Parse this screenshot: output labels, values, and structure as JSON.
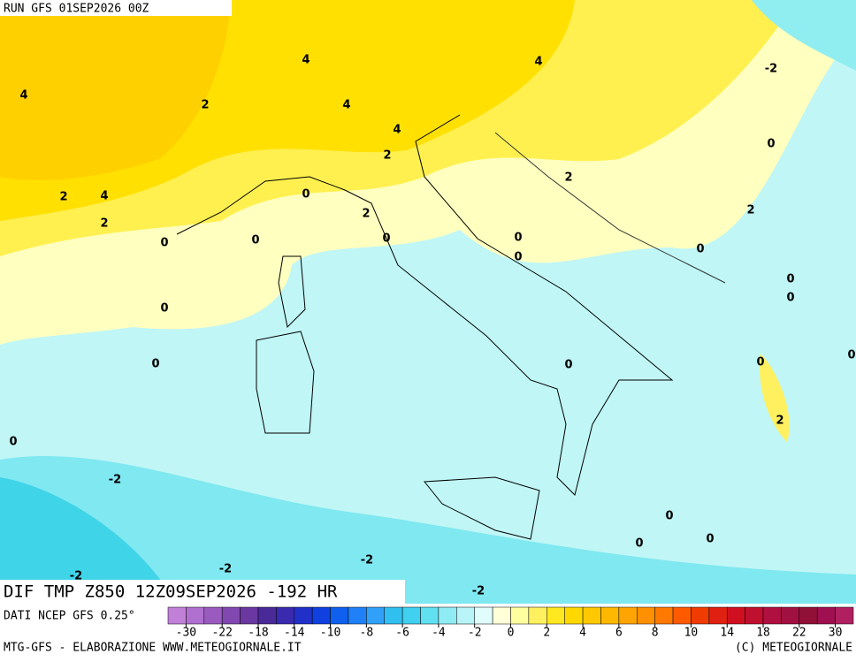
{
  "header": {
    "run": "RUN GFS 01SEP2026 00Z"
  },
  "map": {
    "contour_labels": [
      "4",
      "4",
      "4",
      "-2",
      "2",
      "4",
      "4",
      "0",
      "2",
      "2",
      "4",
      "2",
      "0",
      "2",
      "2",
      "2",
      "0",
      "0",
      "0",
      "0",
      "0",
      "0",
      "0",
      "0",
      "0",
      "0",
      "0",
      "0",
      "0",
      "2",
      "0",
      "-2",
      "0",
      "0",
      "0",
      "-2",
      "-2",
      "-2",
      "-2"
    ]
  },
  "footer": {
    "title": "DIF TMP Z850 12Z09SEP2026 -192 HR",
    "source": "DATI NCEP GFS 0.25°"
  },
  "legend": {
    "colors": [
      "#c080d8",
      "#b070d0",
      "#9a5ac0",
      "#8048b0",
      "#6a38a0",
      "#4a2a98",
      "#3a2ab0",
      "#2030c8",
      "#1040e0",
      "#1060f0",
      "#2080f8",
      "#30a0f8",
      "#30c0f0",
      "#40d0f0",
      "#60e0f0",
      "#90ecf4",
      "#b8f4f8",
      "#e0fcfc",
      "#ffffd8",
      "#ffffa0",
      "#fff060",
      "#ffe820",
      "#ffd800",
      "#ffc800",
      "#ffb800",
      "#ffa400",
      "#ff9000",
      "#ff7800",
      "#ff5a00",
      "#f03c00",
      "#e02010",
      "#d01020",
      "#c01030",
      "#b01040",
      "#a01040",
      "#901038",
      "#a01050",
      "#b02060"
    ],
    "ticks": [
      -30,
      -22,
      -18,
      -14,
      -10,
      -8,
      -6,
      -4,
      -2,
      0,
      2,
      4,
      6,
      8,
      10,
      14,
      18,
      22,
      30
    ]
  },
  "credits": {
    "left": "MTG-GFS - ELABORAZIONE WWW.METEOGIORNALE.IT",
    "right": "(C) METEOGIORNALE"
  }
}
